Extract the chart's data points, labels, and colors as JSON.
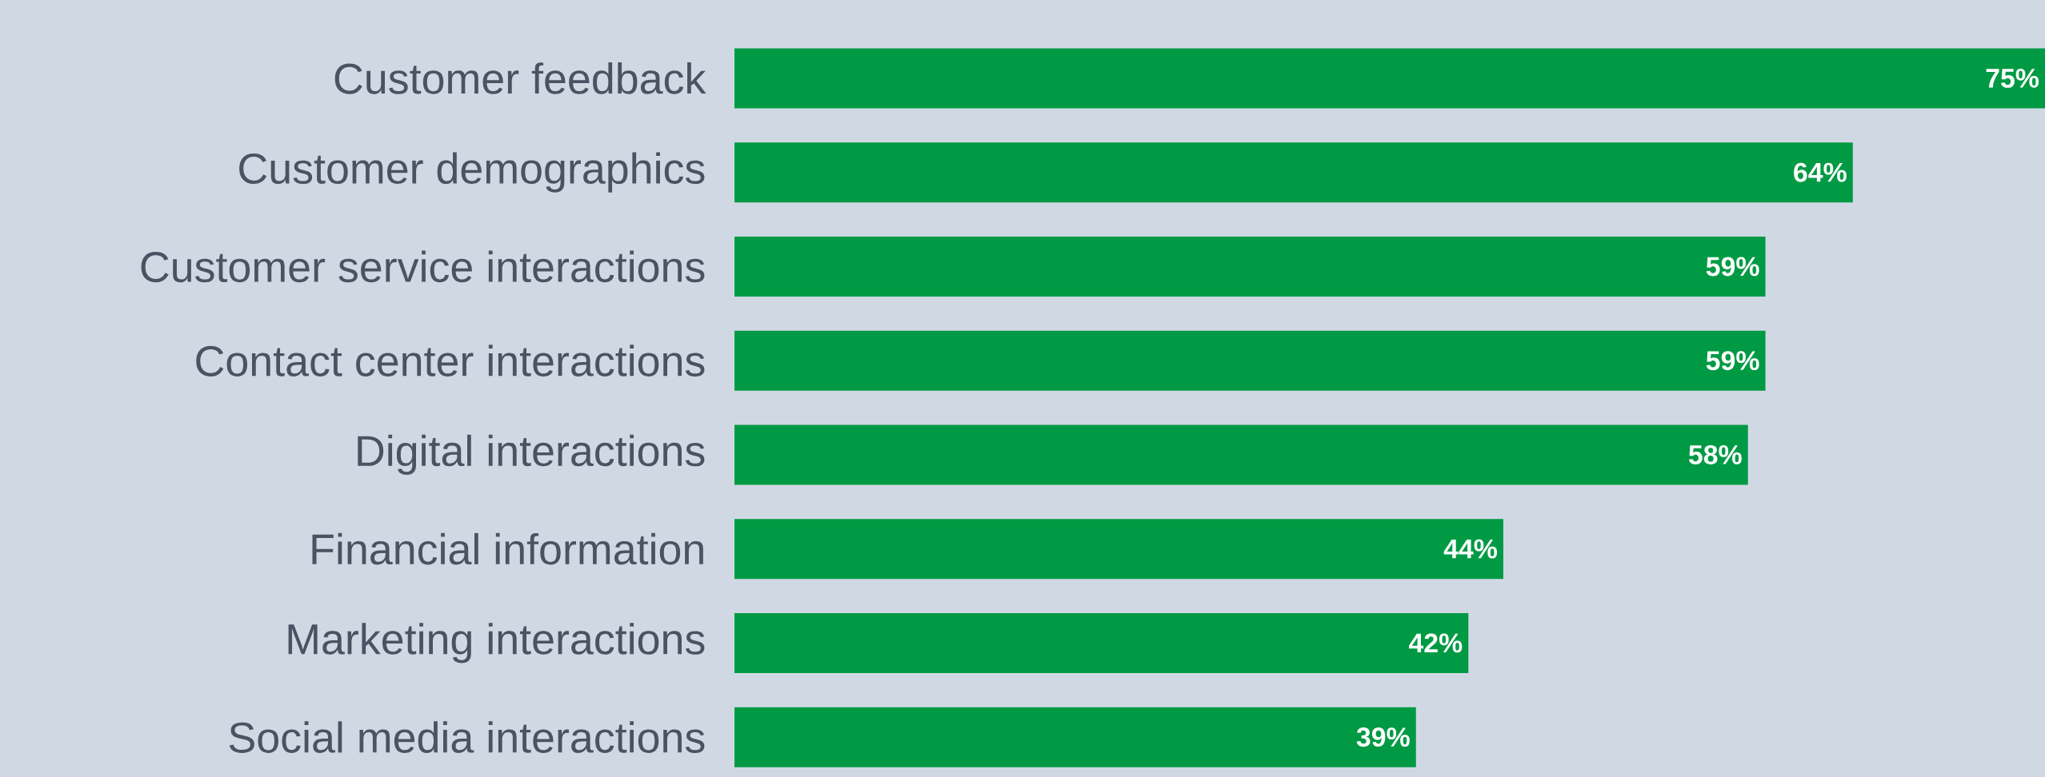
{
  "chart_data": {
    "type": "bar",
    "orientation": "horizontal",
    "categories": [
      "Customer feedback",
      "Customer demographics",
      "Customer service interactions",
      "Contact center interactions",
      "Digital interactions",
      "Financial information",
      "Marketing interactions",
      "Social media interactions"
    ],
    "values": [
      75,
      64,
      59,
      59,
      58,
      44,
      42,
      39
    ],
    "value_labels": [
      "75%",
      "64%",
      "59%",
      "59%",
      "58%",
      "44%",
      "42%",
      "39%"
    ],
    "color": "#009a44",
    "xlim": [
      0,
      75
    ]
  }
}
